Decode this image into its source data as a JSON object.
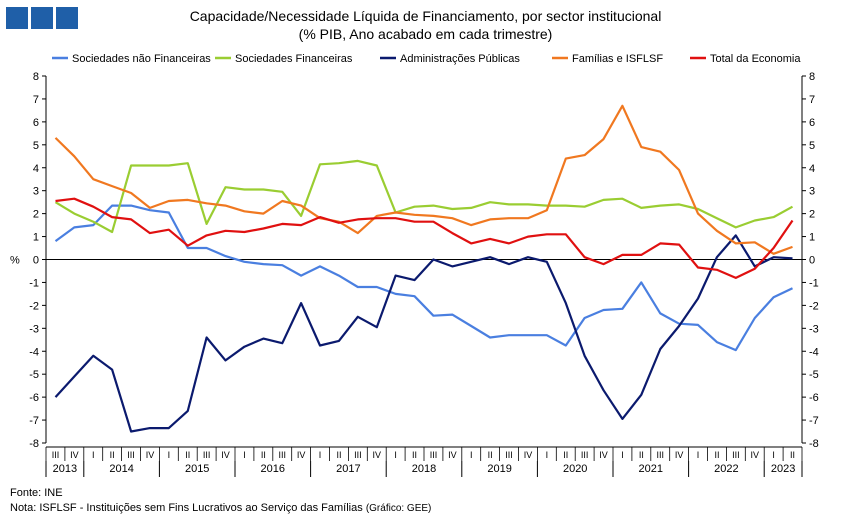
{
  "header": {
    "title": "Capacidade/Necessidade Líquida de Financiamento, por sector institucional",
    "subtitle": "(% PIB, Ano acabado em cada trimestre)"
  },
  "footer": {
    "source": "Fonte: INE",
    "note": "Nota: ISFLSF - Instituições sem Fins Lucrativos ao Serviço das Famílias",
    "credit": "(Gráfico: GEE)"
  },
  "colors": {
    "brand": "#1f5fa8",
    "sociedades_nao_financeiras": "#4a7fe0",
    "sociedades_financeiras": "#9acd32",
    "administracoes_publicas": "#0b1a6e",
    "familias": "#f07820",
    "total": "#e01010"
  },
  "chart_data": {
    "type": "line",
    "title": "Capacidade/Necessidade Líquida de Financiamento, por sector institucional",
    "subtitle": "(% PIB, Ano acabado em cada trimestre)",
    "ylabel": "%",
    "ylim": [
      -8,
      8
    ],
    "yticks": [
      -8,
      -7,
      -6,
      -5,
      -4,
      -3,
      -2,
      -1,
      0,
      1,
      2,
      3,
      4,
      5,
      6,
      7,
      8
    ],
    "grid": false,
    "legend_position": "top",
    "quarter_labels": [
      "III",
      "IV",
      "I",
      "II",
      "III",
      "IV",
      "I",
      "II",
      "III",
      "IV",
      "I",
      "II",
      "III",
      "IV",
      "I",
      "II",
      "III",
      "IV",
      "I",
      "II",
      "III",
      "IV",
      "I",
      "II",
      "III",
      "IV",
      "I",
      "II",
      "III",
      "IV",
      "I",
      "II",
      "III",
      "IV",
      "I",
      "II",
      "III",
      "IV",
      "I",
      "II"
    ],
    "years": [
      {
        "label": "2013",
        "span": 2
      },
      {
        "label": "2014",
        "span": 4
      },
      {
        "label": "2015",
        "span": 4
      },
      {
        "label": "2016",
        "span": 4
      },
      {
        "label": "2017",
        "span": 4
      },
      {
        "label": "2018",
        "span": 4
      },
      {
        "label": "2019",
        "span": 4
      },
      {
        "label": "2020",
        "span": 4
      },
      {
        "label": "2021",
        "span": 4
      },
      {
        "label": "2022",
        "span": 4
      },
      {
        "label": "2023",
        "span": 2
      }
    ],
    "series": [
      {
        "name": "Sociedades não Financeiras",
        "color": "#4a7fe0",
        "values": [
          0.8,
          1.4,
          1.5,
          2.35,
          2.35,
          2.15,
          2.05,
          0.5,
          0.5,
          0.15,
          -0.1,
          -0.2,
          -0.25,
          -0.7,
          -0.3,
          -0.7,
          -1.2,
          -1.2,
          -1.5,
          -1.6,
          -2.45,
          -2.4,
          -2.9,
          -3.4,
          -3.3,
          -3.3,
          -3.3,
          -3.75,
          -2.55,
          -2.2,
          -2.15,
          -1.0,
          -2.35,
          -2.8,
          -2.85,
          -3.6,
          -3.95,
          -2.55,
          -1.65,
          -1.25
        ]
      },
      {
        "name": "Sociedades Financeiras",
        "color": "#9acd32",
        "values": [
          2.5,
          2.0,
          1.65,
          1.2,
          4.1,
          4.1,
          4.1,
          4.2,
          1.55,
          3.15,
          3.05,
          3.05,
          2.95,
          1.9,
          4.15,
          4.2,
          4.3,
          4.1,
          2.05,
          2.3,
          2.35,
          2.2,
          2.25,
          2.5,
          2.4,
          2.4,
          2.35,
          2.35,
          2.3,
          2.6,
          2.65,
          2.25,
          2.35,
          2.4,
          2.2,
          1.8,
          1.4,
          1.7,
          1.85,
          2.3
        ]
      },
      {
        "name": "Administrações Públicas",
        "color": "#0b1a6e",
        "values": [
          -6.0,
          -5.1,
          -4.2,
          -4.8,
          -7.5,
          -7.35,
          -7.35,
          -6.6,
          -3.4,
          -4.4,
          -3.8,
          -3.45,
          -3.65,
          -1.9,
          -3.75,
          -3.55,
          -2.5,
          -2.95,
          -0.7,
          -0.9,
          0.0,
          -0.3,
          -0.1,
          0.1,
          -0.2,
          0.1,
          -0.1,
          -1.9,
          -4.2,
          -5.7,
          -6.95,
          -5.9,
          -3.9,
          -2.9,
          -1.7,
          0.1,
          1.05,
          -0.3,
          0.1,
          0.05
        ]
      },
      {
        "name": "Famílias e ISFLSF",
        "color": "#f07820",
        "values": [
          5.3,
          4.5,
          3.5,
          3.2,
          2.9,
          2.25,
          2.55,
          2.6,
          2.45,
          2.35,
          2.1,
          2.0,
          2.55,
          2.35,
          1.8,
          1.65,
          1.15,
          1.9,
          2.05,
          1.95,
          1.9,
          1.8,
          1.5,
          1.75,
          1.8,
          1.8,
          2.15,
          4.4,
          4.55,
          5.25,
          6.7,
          4.9,
          4.7,
          3.9,
          2.0,
          1.25,
          0.7,
          0.75,
          0.25,
          0.55
        ]
      },
      {
        "name": "Total da Economia",
        "color": "#e01010",
        "values": [
          2.55,
          2.65,
          2.3,
          1.85,
          1.75,
          1.15,
          1.3,
          0.6,
          1.05,
          1.25,
          1.2,
          1.35,
          1.55,
          1.5,
          1.85,
          1.6,
          1.75,
          1.8,
          1.8,
          1.65,
          1.65,
          1.15,
          0.7,
          0.9,
          0.7,
          1.0,
          1.1,
          1.1,
          0.1,
          -0.2,
          0.2,
          0.2,
          0.7,
          0.65,
          -0.35,
          -0.45,
          -0.8,
          -0.4,
          0.5,
          1.7
        ]
      }
    ]
  }
}
